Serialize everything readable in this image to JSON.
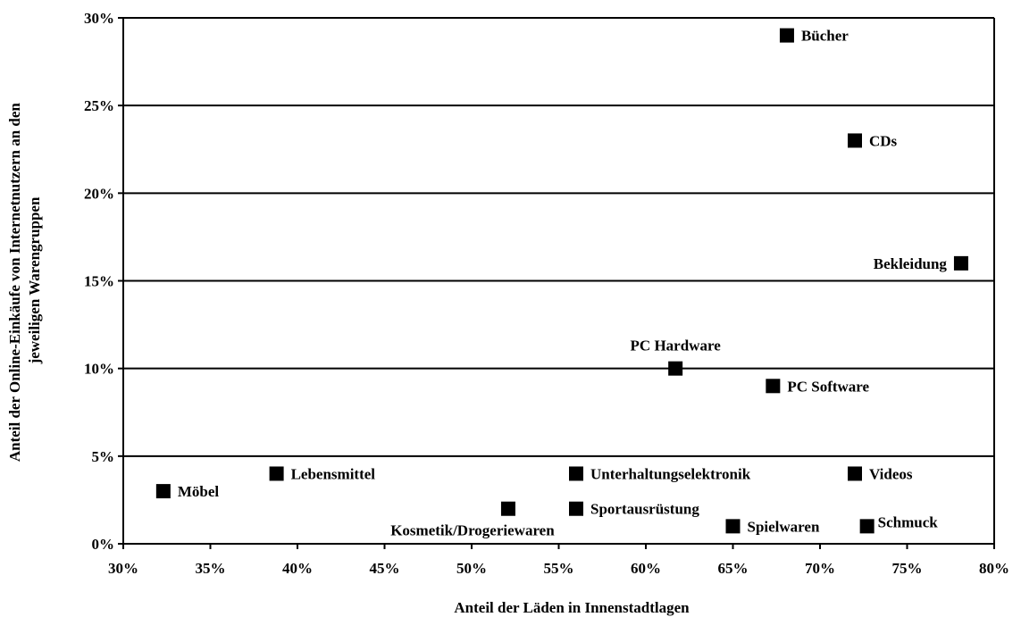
{
  "chart_data": {
    "type": "scatter",
    "xlabel": "Anteil der Läden in Innenstadtlagen",
    "ylabel": [
      "Anteil der Online-Einkäufe von Internetnutzern an den",
      "jeweiligen Warengruppen"
    ],
    "xlim": [
      0.3,
      0.8
    ],
    "ylim": [
      0.0,
      0.3
    ],
    "x_ticks": [
      {
        "value": 0.3,
        "label": "30%"
      },
      {
        "value": 0.35,
        "label": "35%"
      },
      {
        "value": 0.4,
        "label": "40%"
      },
      {
        "value": 0.45,
        "label": "45%"
      },
      {
        "value": 0.5,
        "label": "50%"
      },
      {
        "value": 0.55,
        "label": "55%"
      },
      {
        "value": 0.6,
        "label": "60%"
      },
      {
        "value": 0.65,
        "label": "65%"
      },
      {
        "value": 0.7,
        "label": "70%"
      },
      {
        "value": 0.75,
        "label": "75%"
      },
      {
        "value": 0.8,
        "label": "80%"
      }
    ],
    "y_ticks": [
      {
        "value": 0.0,
        "label": "0%"
      },
      {
        "value": 0.05,
        "label": "5%"
      },
      {
        "value": 0.1,
        "label": "10%"
      },
      {
        "value": 0.15,
        "label": "15%"
      },
      {
        "value": 0.2,
        "label": "20%"
      },
      {
        "value": 0.25,
        "label": "25%"
      },
      {
        "value": 0.3,
        "label": "30%"
      }
    ],
    "horizontal_gridlines": true,
    "legend": false,
    "marker_color": "#000000",
    "points": [
      {
        "label": "Bücher",
        "x": 0.681,
        "y": 0.29,
        "label_side": "right"
      },
      {
        "label": "CDs",
        "x": 0.72,
        "y": 0.23,
        "label_side": "right"
      },
      {
        "label": "Bekleidung",
        "x": 0.781,
        "y": 0.16,
        "label_side": "left"
      },
      {
        "label": "PC Hardware",
        "x": 0.617,
        "y": 0.1,
        "label_side": "above"
      },
      {
        "label": "PC Software",
        "x": 0.673,
        "y": 0.09,
        "label_side": "right"
      },
      {
        "label": "Möbel",
        "x": 0.323,
        "y": 0.03,
        "label_side": "right"
      },
      {
        "label": "Lebensmittel",
        "x": 0.388,
        "y": 0.04,
        "label_side": "right"
      },
      {
        "label": "Unterhaltungselektronik",
        "x": 0.56,
        "y": 0.04,
        "label_side": "right"
      },
      {
        "label": "Videos",
        "x": 0.72,
        "y": 0.04,
        "label_side": "right"
      },
      {
        "label": "Kosmetik/Drogeriewaren",
        "x": 0.521,
        "y": 0.02,
        "label_side": "below"
      },
      {
        "label": "Sportausrüstung",
        "x": 0.56,
        "y": 0.02,
        "label_side": "right"
      },
      {
        "label": "Spielwaren",
        "x": 0.65,
        "y": 0.01,
        "label_side": "right"
      },
      {
        "label": "Schmuck",
        "x": 0.727,
        "y": 0.01,
        "label_side": "right-up"
      }
    ]
  }
}
